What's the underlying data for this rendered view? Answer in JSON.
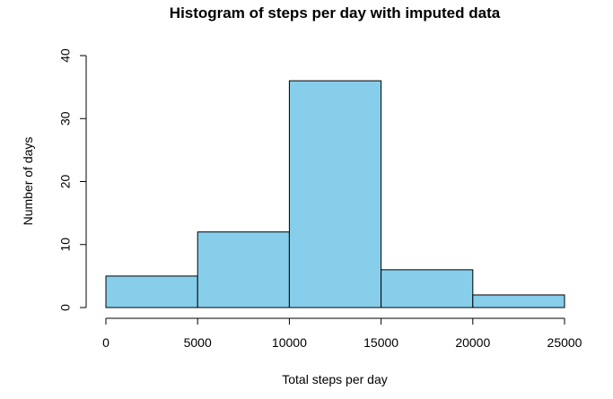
{
  "chart_data": {
    "type": "bar",
    "title": "Histogram of steps per day with imputed data",
    "xlabel": "Total steps per day",
    "ylabel": "Number of days",
    "bins": [
      {
        "from": 0,
        "to": 5000,
        "count": 5
      },
      {
        "from": 5000,
        "to": 10000,
        "count": 12
      },
      {
        "from": 10000,
        "to": 15000,
        "count": 36
      },
      {
        "from": 15000,
        "to": 20000,
        "count": 6
      },
      {
        "from": 20000,
        "to": 25000,
        "count": 2
      }
    ],
    "xlim": [
      0,
      25000
    ],
    "ylim": [
      0,
      40
    ],
    "x_ticks": [
      "0",
      "5000",
      "10000",
      "15000",
      "20000",
      "25000"
    ],
    "y_ticks": [
      "0",
      "10",
      "20",
      "30",
      "40"
    ],
    "bar_color": "#87CEEB",
    "grid": false
  }
}
